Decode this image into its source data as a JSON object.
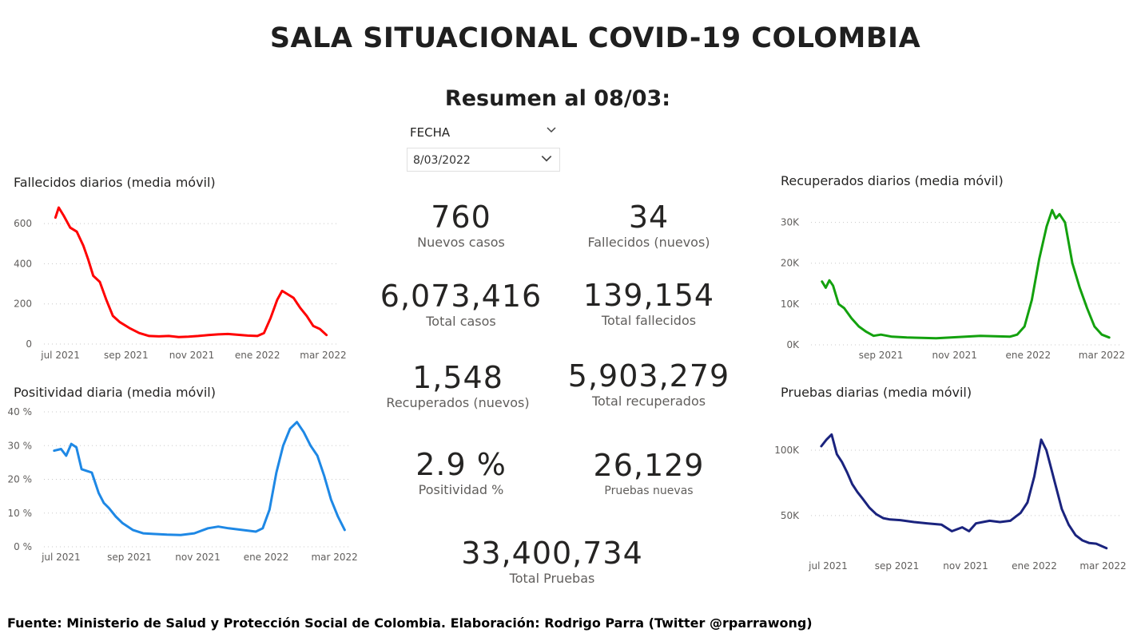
{
  "header": {
    "title": "SALA SITUACIONAL COVID-19 COLOMBIA",
    "subtitle": "Resumen al 08/03:"
  },
  "slicer": {
    "label": "FECHA",
    "value": "8/03/2022",
    "label_icon": "chevron-down-icon",
    "value_icon": "chevron-down-icon"
  },
  "kpis": {
    "nuevos_casos": {
      "value": "760",
      "label": "Nuevos casos"
    },
    "fallecidos_nuevos": {
      "value": "34",
      "label": "Fallecidos (nuevos)"
    },
    "total_casos": {
      "value": "6,073,416",
      "label": "Total casos"
    },
    "total_fallecidos": {
      "value": "139,154",
      "label": "Total fallecidos"
    },
    "recuperados_nuevos": {
      "value": "1,548",
      "label": "Recuperados (nuevos)"
    },
    "total_recuperados": {
      "value": "5,903,279",
      "label": "Total recuperados"
    },
    "positividad": {
      "value": "2.9 %",
      "label": "Positividad %"
    },
    "pruebas_nuevas": {
      "value": "26,129",
      "label": "Pruebas nuevas"
    },
    "total_pruebas": {
      "value": "33,400,734",
      "label": "Total Pruebas"
    }
  },
  "footer": "Fuente: Ministerio de Salud y Protección Social de Colombia. Elaboración: Rodrigo Parra (Twitter @rparrawong)",
  "chart_data": [
    {
      "id": "fallecidos",
      "type": "line",
      "title": "Fallecidos diarios (media móvil)",
      "color": "#ff0000",
      "x_tick_labels": [
        "jul 2021",
        "sep 2021",
        "nov 2021",
        "ene 2022",
        "mar 2022"
      ],
      "x_ticks": [
        0.5,
        2.5,
        4.5,
        6.5,
        8.5
      ],
      "y_ticks": [
        0,
        200,
        400,
        600
      ],
      "y_tick_labels": [
        "0",
        "200",
        "400",
        "600"
      ],
      "ylim": [
        0,
        700
      ],
      "xlim": [
        0,
        9
      ],
      "grid": true,
      "series": [
        {
          "x": [
            0.35,
            0.45,
            0.6,
            0.8,
            1.0,
            1.2,
            1.35,
            1.5,
            1.7,
            1.9,
            2.1,
            2.3,
            2.6,
            2.9,
            3.2,
            3.5,
            3.8,
            4.1,
            4.4,
            4.7,
            5.0,
            5.3,
            5.6,
            5.9,
            6.2,
            6.5,
            6.7,
            6.9,
            7.1,
            7.25,
            7.4,
            7.6,
            7.8,
            8.0,
            8.2,
            8.4,
            8.6
          ],
          "y": [
            630,
            680,
            640,
            580,
            560,
            490,
            420,
            340,
            310,
            220,
            140,
            110,
            80,
            55,
            40,
            38,
            40,
            35,
            37,
            40,
            45,
            48,
            50,
            46,
            42,
            40,
            55,
            130,
            220,
            265,
            250,
            230,
            180,
            140,
            90,
            75,
            45
          ]
        }
      ]
    },
    {
      "id": "positividad",
      "type": "line",
      "title": "Positividad diaria (media móvil)",
      "color": "#1e88e5",
      "x_tick_labels": [
        "jul 2021",
        "sep 2021",
        "nov 2021",
        "ene 2022",
        "mar 2022"
      ],
      "x_ticks": [
        0.5,
        2.5,
        4.5,
        6.5,
        8.5
      ],
      "y_ticks": [
        0,
        10,
        20,
        30,
        40
      ],
      "y_tick_labels": [
        "0 %",
        "10 %",
        "20 %",
        "30 %",
        "40 %"
      ],
      "ylim": [
        0,
        40
      ],
      "xlim": [
        0,
        9
      ],
      "grid": true,
      "series": [
        {
          "x": [
            0.3,
            0.5,
            0.65,
            0.8,
            0.95,
            1.1,
            1.25,
            1.4,
            1.6,
            1.75,
            1.9,
            2.1,
            2.3,
            2.6,
            2.9,
            3.2,
            3.6,
            4.0,
            4.4,
            4.8,
            5.1,
            5.4,
            5.8,
            6.2,
            6.4,
            6.6,
            6.8,
            7.0,
            7.2,
            7.4,
            7.6,
            7.8,
            8.0,
            8.2,
            8.4,
            8.6,
            8.8
          ],
          "y": [
            28.5,
            29,
            27,
            30.5,
            29.5,
            23,
            22.5,
            22,
            16,
            13,
            11.5,
            9,
            7,
            5,
            4,
            3.8,
            3.6,
            3.5,
            4,
            5.5,
            6,
            5.5,
            5,
            4.5,
            5.5,
            11,
            22,
            30,
            35,
            37,
            34,
            30,
            27,
            21,
            14,
            9,
            5
          ]
        }
      ]
    },
    {
      "id": "recuperados",
      "type": "line",
      "title": "Recuperados diarios (media móvil)",
      "color": "#13a10e",
      "x_tick_labels": [
        "sep 2021",
        "nov 2021",
        "ene 2022",
        "mar 2022"
      ],
      "x_ticks": [
        2.5,
        4.5,
        6.5,
        8.5
      ],
      "y_ticks": [
        0,
        10000,
        20000,
        30000
      ],
      "y_tick_labels": [
        "0K",
        "10K",
        "20K",
        "30K"
      ],
      "ylim": [
        0,
        35000
      ],
      "xlim": [
        0.6,
        9.0
      ],
      "grid": true,
      "series": [
        {
          "x": [
            0.9,
            1.0,
            1.1,
            1.2,
            1.35,
            1.5,
            1.7,
            1.9,
            2.1,
            2.3,
            2.5,
            2.8,
            3.2,
            3.6,
            4.0,
            4.4,
            4.8,
            5.2,
            5.6,
            6.0,
            6.2,
            6.4,
            6.6,
            6.8,
            7.0,
            7.15,
            7.25,
            7.35,
            7.5,
            7.7,
            7.9,
            8.1,
            8.3,
            8.5,
            8.7
          ],
          "y": [
            15500,
            14000,
            15800,
            14500,
            10000,
            9000,
            6500,
            4500,
            3200,
            2200,
            2500,
            2000,
            1800,
            1700,
            1600,
            1800,
            2000,
            2200,
            2100,
            2000,
            2500,
            4500,
            11000,
            21000,
            29000,
            33000,
            31000,
            32000,
            30000,
            20000,
            14000,
            9000,
            4500,
            2500,
            1800
          ]
        }
      ]
    },
    {
      "id": "pruebas",
      "type": "line",
      "title": "Pruebas diarias (media móvil)",
      "color": "#1a237e",
      "x_tick_labels": [
        "jul 2021",
        "sep 2021",
        "nov 2021",
        "ene 2022",
        "mar 2022"
      ],
      "x_ticks": [
        0.5,
        2.5,
        4.5,
        6.5,
        8.5
      ],
      "y_ticks": [
        50000,
        100000
      ],
      "y_tick_labels": [
        "50K",
        "100K"
      ],
      "ylim": [
        20000,
        125000
      ],
      "xlim": [
        0,
        9
      ],
      "grid": true,
      "series": [
        {
          "x": [
            0.3,
            0.45,
            0.6,
            0.75,
            0.9,
            1.05,
            1.2,
            1.35,
            1.5,
            1.7,
            1.9,
            2.1,
            2.3,
            2.6,
            3.0,
            3.4,
            3.8,
            4.1,
            4.4,
            4.6,
            4.8,
            5.0,
            5.2,
            5.5,
            5.8,
            6.1,
            6.3,
            6.5,
            6.7,
            6.85,
            6.95,
            7.1,
            7.3,
            7.5,
            7.7,
            7.9,
            8.1,
            8.3,
            8.6
          ],
          "y": [
            103000,
            108000,
            112000,
            97000,
            91000,
            83000,
            74000,
            68000,
            63000,
            56000,
            51000,
            48000,
            47000,
            46500,
            45000,
            44000,
            43000,
            38000,
            41000,
            38000,
            44000,
            45000,
            46000,
            45000,
            46000,
            52000,
            60000,
            80000,
            108000,
            100000,
            90000,
            75000,
            55000,
            43000,
            35000,
            31000,
            29000,
            28500,
            25000
          ]
        }
      ]
    }
  ]
}
